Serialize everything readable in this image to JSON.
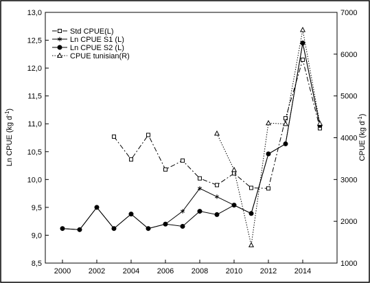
{
  "chart_data": {
    "type": "line",
    "ylabel_left": "Ln CPUE (kg d",
    "ylabel_left_sup": "-1",
    "ylabel_left_close": ")",
    "ylabel_right": "CPUE (kg d",
    "ylabel_right_sup": "-1",
    "ylabel_right_close": ")",
    "xlim": [
      1999,
      2016
    ],
    "x_ticks": [
      "2000",
      "2002",
      "2004",
      "2006",
      "2008",
      "2010",
      "2012",
      "2014"
    ],
    "ylim_left": [
      8.5,
      13.0
    ],
    "y_ticks_left": [
      "8,5",
      "9,0",
      "9,5",
      "10,0",
      "10,5",
      "11,0",
      "11,5",
      "12,0",
      "12,5",
      "13,0"
    ],
    "ylim_right": [
      1000,
      7000
    ],
    "y_ticks_right": [
      "1000",
      "2000",
      "3000",
      "4000",
      "5000",
      "6000",
      "7000"
    ],
    "grid": false,
    "legend_position": "top-left",
    "series": [
      {
        "name": "Std CPUE(L)",
        "axis": "left",
        "line": "dashdot",
        "marker": "square-open",
        "points": [
          [
            2003,
            10.77
          ],
          [
            2004,
            10.36
          ],
          [
            2005,
            10.8
          ],
          [
            2006,
            10.18
          ],
          [
            2007,
            10.34
          ],
          [
            2008,
            10.02
          ],
          [
            2009,
            9.9
          ],
          [
            2010,
            10.11
          ],
          [
            2011,
            9.85
          ],
          [
            2012,
            9.84
          ],
          [
            2013,
            11.1
          ],
          [
            2014,
            12.15
          ],
          [
            2015,
            10.92
          ]
        ]
      },
      {
        "name": "Ln CPUE S1 (L)",
        "axis": "left",
        "line": "solid",
        "marker": "asterisk",
        "points": [
          [
            2000,
            9.12
          ],
          [
            2001,
            9.1
          ],
          [
            2002,
            9.5
          ],
          [
            2003,
            9.12
          ],
          [
            2004,
            9.38
          ],
          [
            2005,
            9.12
          ],
          [
            2006,
            9.2
          ],
          [
            2007,
            9.43
          ],
          [
            2008,
            9.84
          ],
          [
            2009,
            9.69
          ],
          [
            2010,
            9.54
          ],
          [
            2011,
            9.39
          ],
          [
            2012,
            10.46
          ],
          [
            2013,
            10.64
          ],
          [
            2014,
            12.45
          ],
          [
            2015,
            10.97
          ]
        ]
      },
      {
        "name": "Ln CPUE S2 (L)",
        "axis": "left",
        "line": "solid",
        "marker": "circle-filled",
        "points": [
          [
            2000,
            9.12
          ],
          [
            2001,
            9.1
          ],
          [
            2002,
            9.5
          ],
          [
            2003,
            9.12
          ],
          [
            2004,
            9.38
          ],
          [
            2005,
            9.12
          ],
          [
            2006,
            9.2
          ],
          [
            2007,
            9.16
          ],
          [
            2008,
            9.43
          ],
          [
            2009,
            9.37
          ],
          [
            2010,
            9.54
          ],
          [
            2011,
            9.39
          ],
          [
            2012,
            10.46
          ],
          [
            2013,
            10.64
          ],
          [
            2014,
            12.45
          ],
          [
            2015,
            10.97
          ]
        ]
      },
      {
        "name": "CPUE tunisian(R)",
        "axis": "right",
        "line": "dotted",
        "marker": "triangle-open",
        "points": [
          [
            2009,
            4100
          ],
          [
            2010,
            3230
          ],
          [
            2011,
            1430
          ],
          [
            2012,
            4350
          ],
          [
            2013,
            4330
          ],
          [
            2014,
            6580
          ],
          [
            2015,
            4340
          ]
        ]
      }
    ]
  }
}
